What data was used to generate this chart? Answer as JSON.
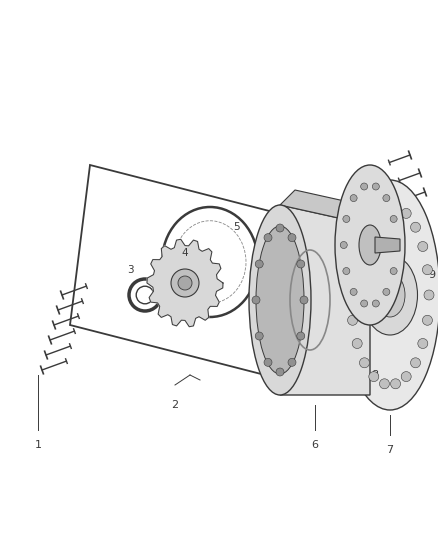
{
  "bg_color": "#ffffff",
  "lc": "#3a3a3a",
  "fig_width": 4.38,
  "fig_height": 5.33,
  "dpi": 100
}
